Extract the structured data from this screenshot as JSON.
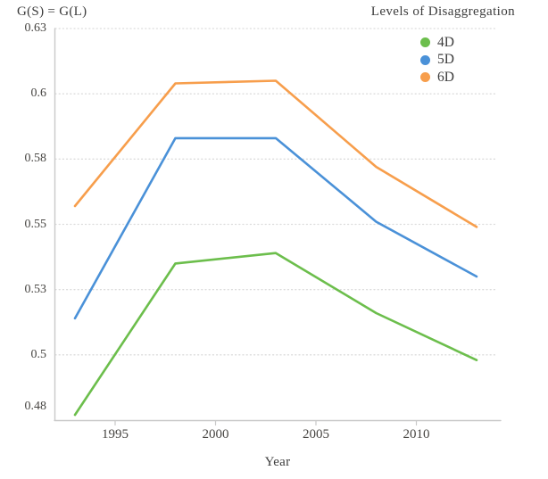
{
  "chart_data": {
    "type": "line",
    "title": "",
    "xlabel": "Year",
    "ylabel": "G(S) = G(L)",
    "x": [
      1993,
      1998,
      2003,
      2008,
      2013
    ],
    "series": [
      {
        "name": "4D",
        "color": "#6CBE4C",
        "values": [
          0.477,
          0.535,
          0.539,
          0.516,
          0.498
        ]
      },
      {
        "name": "5D",
        "color": "#4A91D8",
        "values": [
          0.514,
          0.583,
          0.583,
          0.551,
          0.53
        ]
      },
      {
        "name": "6D",
        "color": "#F79E4C",
        "values": [
          0.557,
          0.604,
          0.605,
          0.572,
          0.549
        ]
      }
    ],
    "legend": {
      "title": "Levels of Disaggregation",
      "position": "top-right"
    },
    "y_ticks": [
      {
        "label": "0.63",
        "value": 0.625
      },
      {
        "label": "0.6",
        "value": 0.6
      },
      {
        "label": "0.58",
        "value": 0.575
      },
      {
        "label": "0.55",
        "value": 0.55
      },
      {
        "label": "0.53",
        "value": 0.525
      },
      {
        "label": "0.5",
        "value": 0.5
      },
      {
        "label": "0.48",
        "value": 0.475
      }
    ],
    "x_ticks": [
      {
        "label": "1995",
        "value": 1995
      },
      {
        "label": "2000",
        "value": 2000
      },
      {
        "label": "2005",
        "value": 2005
      },
      {
        "label": "2010",
        "value": 2010
      }
    ],
    "ylim": [
      0.475,
      0.625
    ],
    "xlim": [
      1992,
      2015
    ],
    "grid": "horizontal-dotted",
    "grid_color": "#DCDCDC",
    "axis_color": "#C9C9C9",
    "text_color": "#3C3C3C"
  }
}
